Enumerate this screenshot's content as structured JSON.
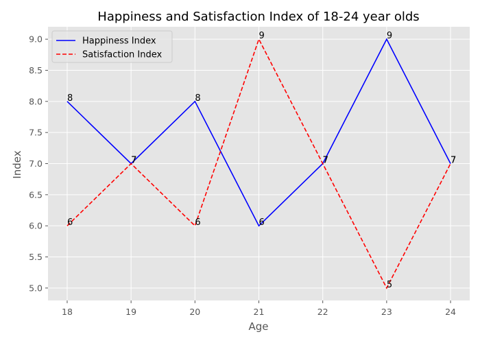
{
  "chart_data": {
    "type": "line",
    "title": "Happiness and Satisfaction Index of 18-24 year olds",
    "xlabel": "Age",
    "ylabel": "Index",
    "x": [
      18,
      19,
      20,
      21,
      22,
      23,
      24
    ],
    "xticks": [
      "18",
      "19",
      "20",
      "21",
      "22",
      "23",
      "24"
    ],
    "xlim": [
      17.7,
      24.3
    ],
    "ylim": [
      4.8,
      9.2
    ],
    "yticks": [
      "5.0",
      "5.5",
      "6.0",
      "6.5",
      "7.0",
      "7.5",
      "8.0",
      "8.5",
      "9.0"
    ],
    "ytick_values": [
      5.0,
      5.5,
      6.0,
      6.5,
      7.0,
      7.5,
      8.0,
      8.5,
      9.0
    ],
    "grid": true,
    "legend_position": "upper-left",
    "background": "#e5e5e5",
    "series": [
      {
        "name": "Happiness Index",
        "values": [
          8,
          7,
          8,
          6,
          7,
          9,
          7
        ],
        "labels": [
          "8",
          "7",
          "8",
          "6",
          "7",
          "9",
          "7"
        ],
        "color": "#0000ff",
        "line_style": "solid"
      },
      {
        "name": "Satisfaction Index",
        "values": [
          6,
          7,
          6,
          9,
          7,
          5,
          7
        ],
        "labels": [
          "6",
          "7",
          "6",
          "9",
          "7",
          "5",
          "7"
        ],
        "color": "#ff0000",
        "line_style": "dashed"
      }
    ]
  }
}
